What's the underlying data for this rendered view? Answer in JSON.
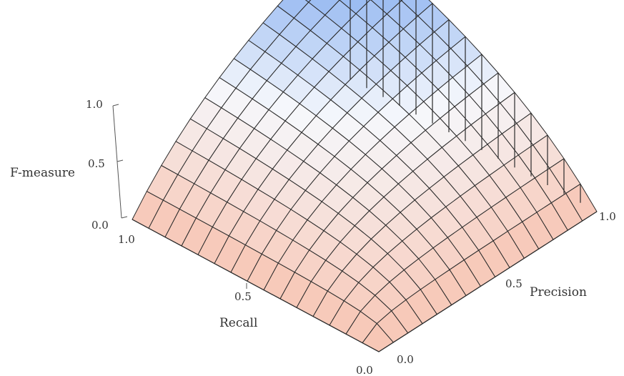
{
  "chart_data": {
    "type": "surface",
    "function": "harmonic-mean",
    "x_axis": {
      "label": "Recall",
      "range": [
        0,
        1
      ],
      "ticks": [
        0.0,
        0.5,
        1.0
      ],
      "tick_labels": [
        "0.0",
        "0.5",
        "1.0"
      ]
    },
    "y_axis": {
      "label": "Precision",
      "range": [
        0,
        1
      ],
      "ticks": [
        0.0,
        0.5,
        1.0
      ],
      "tick_labels": [
        "0.0",
        "0.5",
        "1.0"
      ]
    },
    "z_axis": {
      "label": "F-measure",
      "range": [
        0,
        1
      ],
      "ticks": [
        0.0,
        0.5,
        1.0
      ],
      "tick_labels": [
        "0.0",
        "0.5",
        "1.0"
      ]
    },
    "mesh_divisions": 15,
    "colors": {
      "low": "#f7c4b2",
      "mid": "#f6f8fc",
      "high": "#87aff0",
      "mesh": "#2a2a2a"
    }
  }
}
